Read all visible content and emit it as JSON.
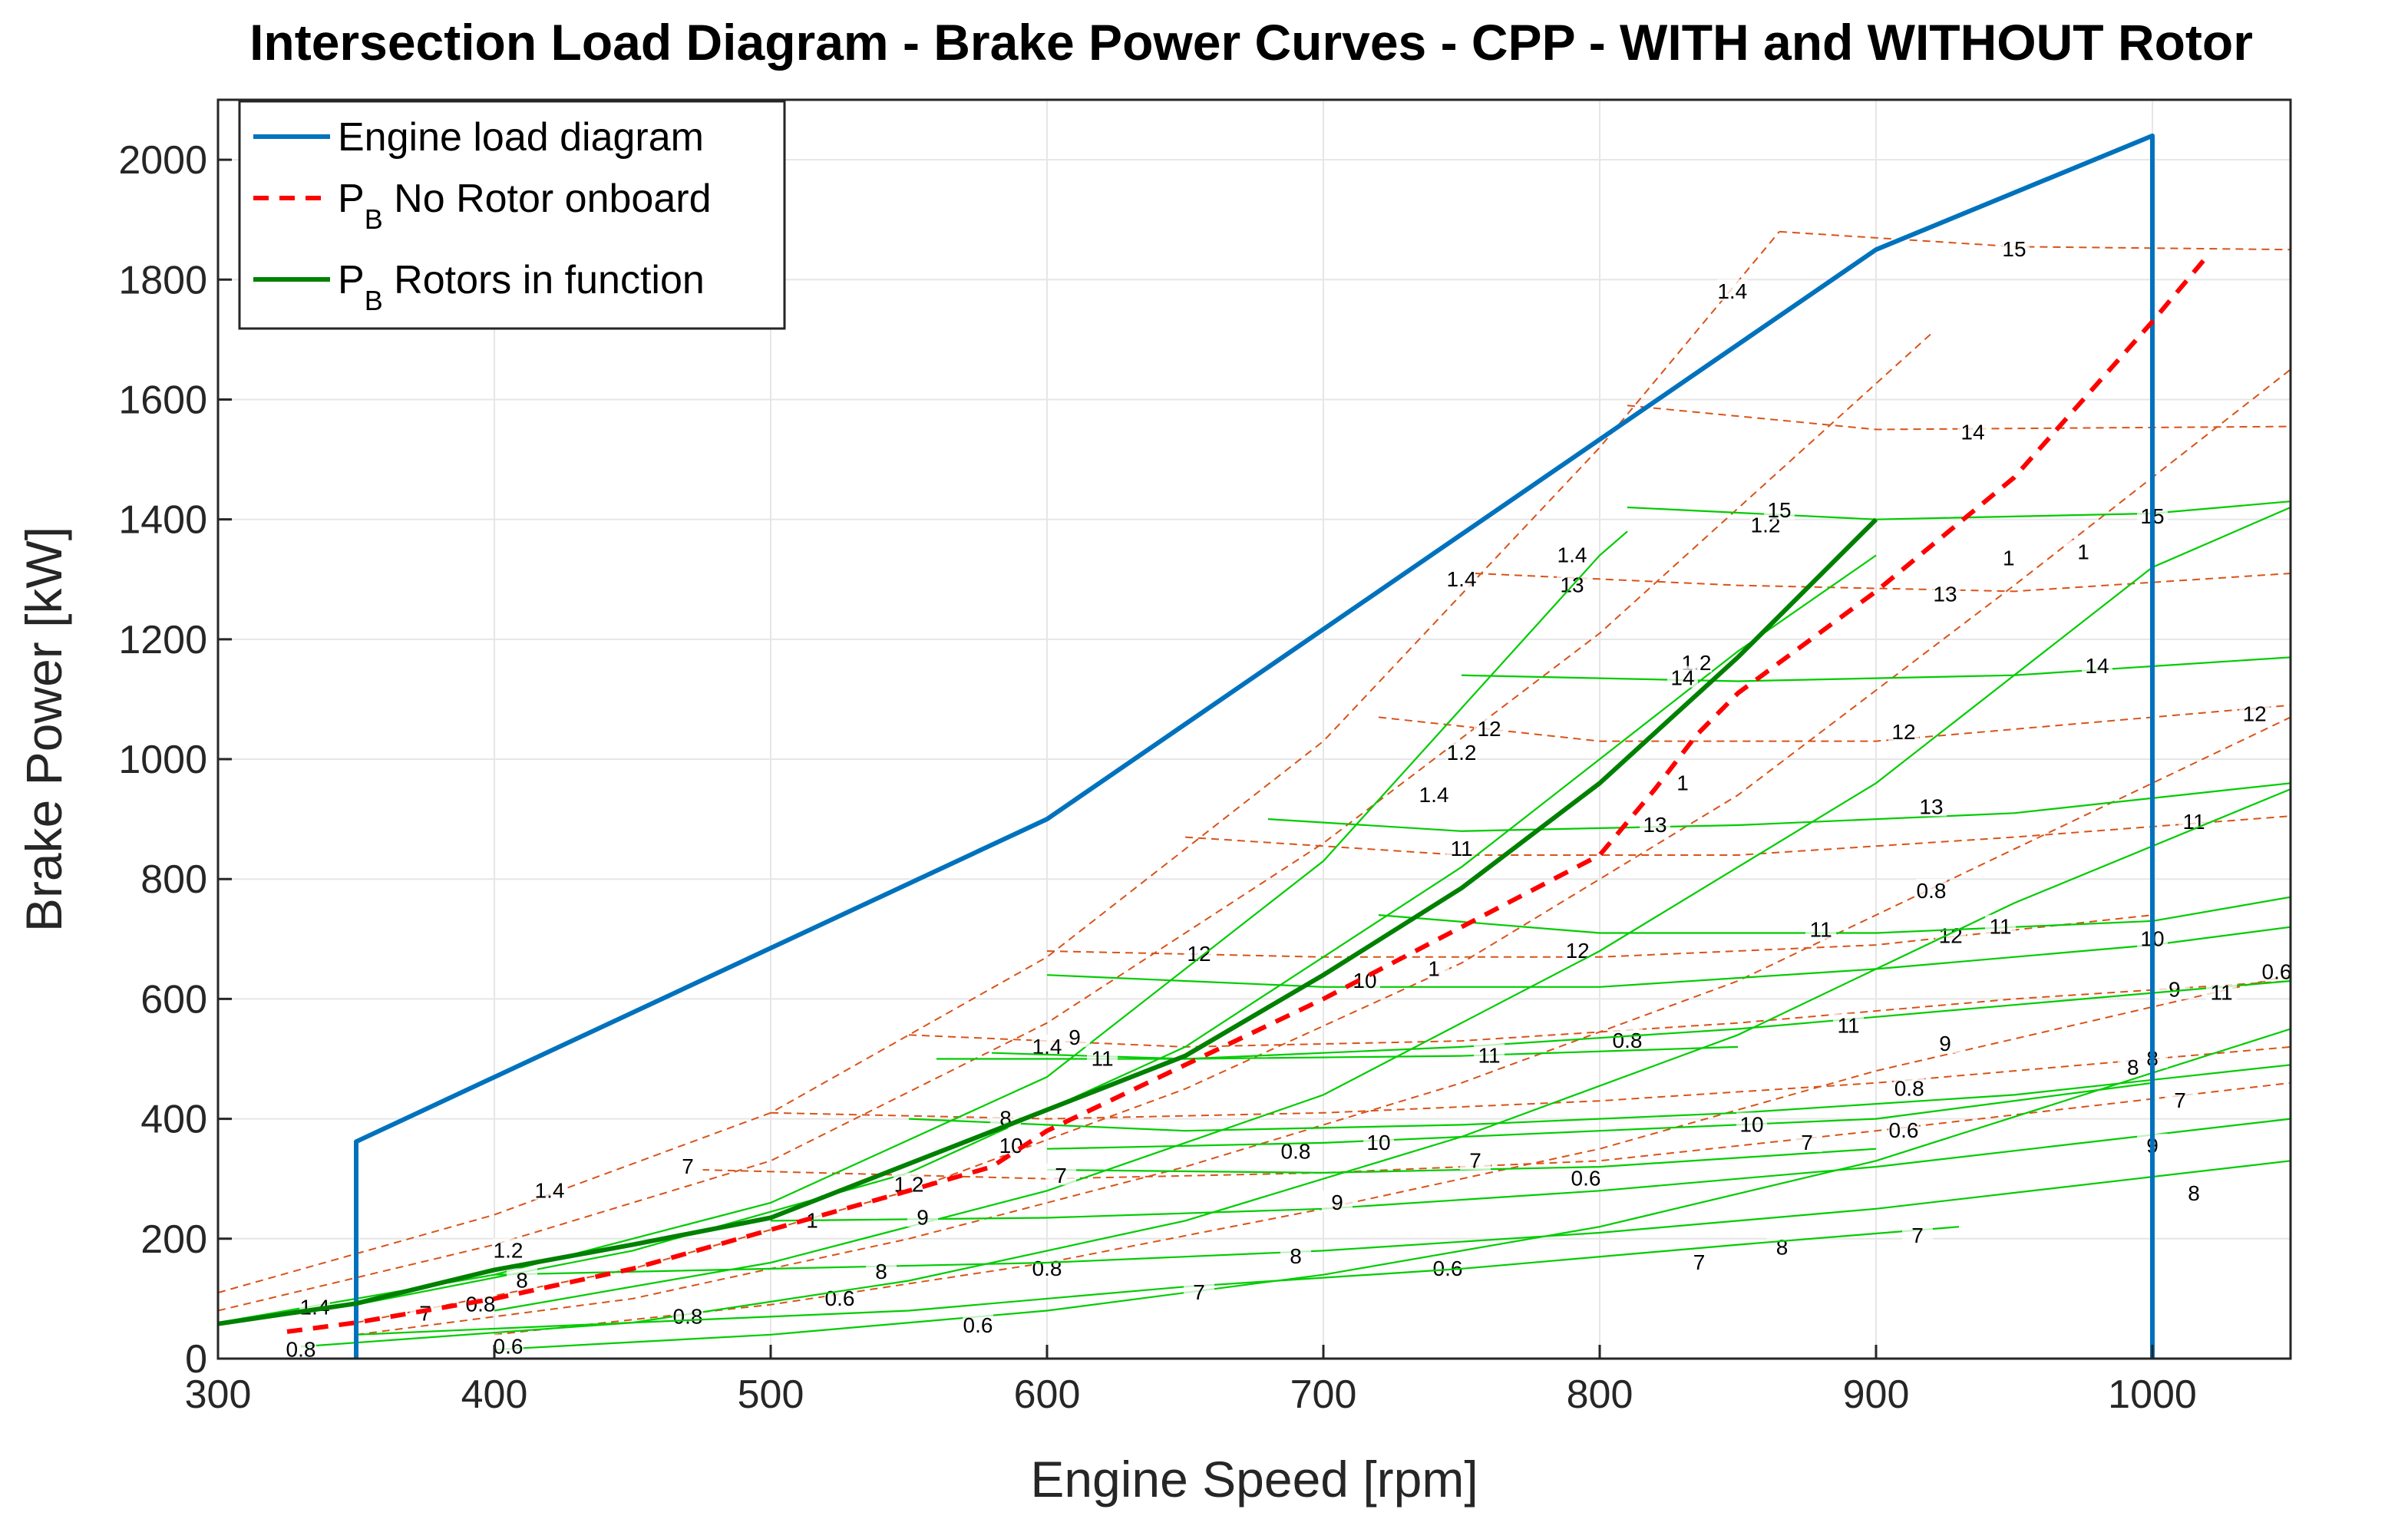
{
  "chart_data": {
    "type": "line",
    "title": "Intersection Load Diagram - Brake Power Curves - CPP - WITH and WITHOUT Rotor",
    "xlabel": "Engine Speed [rpm]",
    "ylabel": "Brake Power [kW]",
    "xlim": [
      300,
      1050
    ],
    "ylim": [
      0,
      2100
    ],
    "xticks": [
      300,
      400,
      500,
      600,
      700,
      800,
      900,
      1000
    ],
    "yticks": [
      0,
      200,
      400,
      600,
      800,
      1000,
      1200,
      1400,
      1600,
      1800,
      2000
    ],
    "grid": true,
    "legend_position": "top-left",
    "colors": {
      "load": "#0072bd",
      "no_rotor": "#ff0000",
      "rotor": "#008000",
      "contour_no_rotor": "#d95319",
      "contour_rotor": "#00cc00"
    },
    "series": [
      {
        "name": "Engine load diagram",
        "legend_main": "Engine load diagram",
        "legend_sub": "",
        "style": "solid",
        "x": [
          350,
          350,
          600,
          900,
          1000,
          1000
        ],
        "y": [
          0,
          362,
          900,
          1850,
          2040,
          0
        ]
      },
      {
        "name": "P_B No Rotor onboard",
        "legend_main": "P",
        "legend_sub": "B",
        "legend_rest": " No Rotor onboard",
        "style": "dashed",
        "x": [
          325,
          350,
          400,
          450,
          500,
          550,
          580,
          600,
          650,
          700,
          750,
          800,
          820,
          835,
          850,
          900,
          950,
          1000,
          1020
        ],
        "y": [
          45,
          60,
          100,
          150,
          215,
          280,
          320,
          380,
          490,
          600,
          720,
          840,
          950,
          1040,
          1110,
          1280,
          1470,
          1730,
          1840
        ]
      },
      {
        "name": "P_B Rotors in function",
        "legend_main": "P",
        "legend_sub": "B",
        "legend_rest": " Rotors in function",
        "style": "solid",
        "x": [
          300,
          350,
          400,
          450,
          500,
          550,
          600,
          650,
          700,
          750,
          800,
          850,
          900
        ],
        "y": [
          58,
          92,
          148,
          190,
          235,
          325,
          415,
          505,
          640,
          785,
          960,
          1170,
          1400
        ]
      }
    ],
    "contours_no_rotor": {
      "const_speed_lines": [
        {
          "label": "1.4",
          "x": [
            300,
            400,
            500,
            600,
            700,
            800,
            865
          ],
          "y": [
            110,
            240,
            410,
            670,
            1030,
            1520,
            1880
          ],
          "labels": [
            {
              "x": 420,
              "y": 280
            },
            {
              "x": 750,
              "y": 1300
            },
            {
              "x": 848,
              "y": 1780
            }
          ]
        },
        {
          "label": "1.2",
          "x": [
            300,
            400,
            500,
            600,
            700,
            800,
            920
          ],
          "y": [
            80,
            190,
            330,
            560,
            860,
            1210,
            1710
          ],
          "labels": [
            {
              "x": 405,
              "y": 180
            },
            {
              "x": 750,
              "y": 1010
            },
            {
              "x": 860,
              "y": 1390
            }
          ]
        },
        {
          "label": "1",
          "x": [
            350,
            450,
            550,
            650,
            750,
            850,
            950,
            1050
          ],
          "y": [
            60,
            150,
            280,
            450,
            660,
            940,
            1290,
            1650
          ],
          "labels": [
            {
              "x": 515,
              "y": 230
            },
            {
              "x": 740,
              "y": 650
            },
            {
              "x": 830,
              "y": 960
            },
            {
              "x": 948,
              "y": 1335
            }
          ]
        },
        {
          "label": "0.8",
          "x": [
            350,
            450,
            550,
            650,
            750,
            850,
            950,
            1050
          ],
          "y": [
            40,
            100,
            200,
            320,
            460,
            630,
            850,
            1070
          ],
          "labels": [
            {
              "x": 395,
              "y": 90
            },
            {
              "x": 690,
              "y": 345
            },
            {
              "x": 920,
              "y": 780
            }
          ]
        },
        {
          "label": "0.6",
          "x": [
            400,
            500,
            600,
            700,
            800,
            900,
            1050
          ],
          "y": [
            40,
            90,
            160,
            250,
            350,
            480,
            640
          ],
          "labels": [
            {
              "x": 525,
              "y": 100
            },
            {
              "x": 795,
              "y": 300
            },
            {
              "x": 1045,
              "y": 645
            }
          ]
        }
      ],
      "efficiency_lines": [
        {
          "label": "15",
          "x": [
            865,
            950,
            1050
          ],
          "y": [
            1880,
            1855,
            1850
          ],
          "labels": [
            {
              "x": 950,
              "y": 1850
            }
          ]
        },
        {
          "label": "14",
          "x": [
            810,
            900,
            1050
          ],
          "y": [
            1590,
            1550,
            1555
          ],
          "labels": [
            {
              "x": 935,
              "y": 1545
            }
          ]
        },
        {
          "label": "13",
          "x": [
            755,
            850,
            950,
            1050
          ],
          "y": [
            1310,
            1290,
            1280,
            1310
          ],
          "labels": [
            {
              "x": 790,
              "y": 1290
            },
            {
              "x": 925,
              "y": 1275
            }
          ]
        },
        {
          "label": "12",
          "x": [
            720,
            800,
            900,
            1050
          ],
          "y": [
            1070,
            1030,
            1030,
            1090
          ],
          "labels": [
            {
              "x": 760,
              "y": 1050
            },
            {
              "x": 910,
              "y": 1045
            },
            {
              "x": 1037,
              "y": 1075
            }
          ]
        },
        {
          "label": "11",
          "x": [
            650,
            750,
            850,
            950,
            1050
          ],
          "y": [
            870,
            840,
            840,
            870,
            905
          ],
          "labels": [
            {
              "x": 750,
              "y": 850
            },
            {
              "x": 1015,
              "y": 895
            }
          ]
        },
        {
          "label": "12",
          "x": [
            600,
            700,
            800,
            900,
            1000
          ],
          "y": [
            680,
            670,
            670,
            690,
            740
          ],
          "labels": [
            {
              "x": 655,
              "y": 675
            },
            {
              "x": 792,
              "y": 680
            },
            {
              "x": 927,
              "y": 705
            }
          ]
        },
        {
          "label": "9",
          "x": [
            550,
            650,
            750,
            850,
            950,
            1050
          ],
          "y": [
            540,
            520,
            530,
            560,
            600,
            630
          ],
          "labels": [
            {
              "x": 1008,
              "y": 615
            }
          ]
        },
        {
          "label": "8",
          "x": [
            500,
            600,
            700,
            800,
            900,
            1050
          ],
          "y": [
            410,
            400,
            410,
            430,
            460,
            520
          ],
          "labels": [
            {
              "x": 993,
              "y": 485
            }
          ]
        },
        {
          "label": "7",
          "x": [
            475,
            600,
            700,
            800,
            900,
            1050
          ],
          "y": [
            315,
            300,
            310,
            330,
            380,
            460
          ],
          "labels": [
            {
              "x": 470,
              "y": 320
            },
            {
              "x": 1010,
              "y": 430
            }
          ]
        }
      ]
    },
    "contours_rotor": {
      "const_speed_lines": [
        {
          "label": "1.4",
          "x": [
            300,
            400,
            500,
            600,
            700,
            800,
            810
          ],
          "y": [
            60,
            140,
            260,
            470,
            830,
            1340,
            1380
          ],
          "labels": [
            {
              "x": 335,
              "y": 85
            },
            {
              "x": 600,
              "y": 520
            },
            {
              "x": 740,
              "y": 940
            },
            {
              "x": 790,
              "y": 1340
            }
          ]
        },
        {
          "label": "1.2",
          "x": [
            350,
            450,
            550,
            650,
            750,
            850,
            900
          ],
          "y": [
            90,
            180,
            310,
            520,
            820,
            1180,
            1340
          ],
          "labels": [
            {
              "x": 550,
              "y": 290
            },
            {
              "x": 835,
              "y": 1160
            }
          ]
        },
        {
          "label": "1",
          "x": [
            400,
            500,
            600,
            700,
            800,
            900,
            1000,
            1050
          ],
          "y": [
            80,
            160,
            280,
            440,
            680,
            960,
            1320,
            1420
          ],
          "labels": [
            {
              "x": 975,
              "y": 1345
            }
          ]
        },
        {
          "label": "0.8",
          "x": [
            330,
            450,
            550,
            650,
            750,
            850,
            950,
            1050
          ],
          "y": [
            20,
            60,
            130,
            230,
            370,
            540,
            760,
            950
          ],
          "labels": [
            {
              "x": 330,
              "y": 15
            },
            {
              "x": 470,
              "y": 70
            },
            {
              "x": 600,
              "y": 150
            },
            {
              "x": 810,
              "y": 530
            },
            {
              "x": 912,
              "y": 450
            }
          ]
        },
        {
          "label": "0.6",
          "x": [
            400,
            500,
            600,
            700,
            800,
            900,
            1050
          ],
          "y": [
            15,
            40,
            80,
            140,
            220,
            330,
            550
          ],
          "labels": [
            {
              "x": 405,
              "y": 20
            },
            {
              "x": 575,
              "y": 55
            },
            {
              "x": 745,
              "y": 150
            },
            {
              "x": 910,
              "y": 380
            }
          ]
        }
      ],
      "efficiency_lines": [
        {
          "label": "15",
          "x": [
            810,
            900,
            1000,
            1050
          ],
          "y": [
            1420,
            1400,
            1410,
            1430
          ],
          "labels": [
            {
              "x": 865,
              "y": 1415
            },
            {
              "x": 1000,
              "y": 1405
            }
          ]
        },
        {
          "label": "14",
          "x": [
            750,
            850,
            950,
            1050
          ],
          "y": [
            1140,
            1130,
            1140,
            1170
          ],
          "labels": [
            {
              "x": 830,
              "y": 1135
            },
            {
              "x": 980,
              "y": 1155
            }
          ]
        },
        {
          "label": "13",
          "x": [
            680,
            750,
            850,
            950,
            1050
          ],
          "y": [
            900,
            880,
            890,
            910,
            960
          ],
          "labels": [
            {
              "x": 820,
              "y": 890
            },
            {
              "x": 920,
              "y": 920
            }
          ]
        },
        {
          "label": "11",
          "x": [
            720,
            800,
            900,
            1000,
            1050
          ],
          "y": [
            740,
            710,
            710,
            730,
            770
          ],
          "labels": [
            {
              "x": 880,
              "y": 715
            },
            {
              "x": 945,
              "y": 720
            }
          ]
        },
        {
          "label": "10",
          "x": [
            600,
            700,
            800,
            900,
            1000,
            1050
          ],
          "y": [
            640,
            620,
            620,
            650,
            690,
            720
          ],
          "labels": [
            {
              "x": 715,
              "y": 630
            },
            {
              "x": 1000,
              "y": 700
            }
          ]
        },
        {
          "label": "9",
          "x": [
            560,
            650,
            750,
            850,
            950,
            1050
          ],
          "y": [
            500,
            500,
            520,
            550,
            590,
            630
          ],
          "labels": [
            {
              "x": 610,
              "y": 535
            },
            {
              "x": 925,
              "y": 525
            }
          ]
        },
        {
          "label": "11",
          "x": [
            580,
            650,
            750,
            850
          ],
          "y": [
            510,
            500,
            505,
            520
          ],
          "labels": [
            {
              "x": 620,
              "y": 500
            },
            {
              "x": 760,
              "y": 505
            },
            {
              "x": 890,
              "y": 555
            },
            {
              "x": 1025,
              "y": 610
            }
          ]
        },
        {
          "label": "8",
          "x": [
            550,
            650,
            750,
            850,
            950,
            1050
          ],
          "y": [
            400,
            380,
            390,
            410,
            440,
            490
          ],
          "labels": [
            {
              "x": 585,
              "y": 400
            },
            {
              "x": 1000,
              "y": 500
            }
          ]
        },
        {
          "label": "10",
          "x": [
            600,
            700,
            800,
            900,
            1000
          ],
          "y": [
            350,
            360,
            380,
            400,
            460
          ],
          "labels": [
            {
              "x": 587,
              "y": 355
            },
            {
              "x": 720,
              "y": 360
            },
            {
              "x": 855,
              "y": 390
            }
          ]
        },
        {
          "label": "7",
          "x": [
            600,
            700,
            800,
            900
          ],
          "y": [
            315,
            310,
            320,
            350
          ],
          "labels": [
            {
              "x": 605,
              "y": 305
            },
            {
              "x": 755,
              "y": 330
            },
            {
              "x": 875,
              "y": 360
            }
          ]
        },
        {
          "label": "9",
          "x": [
            500,
            600,
            700,
            800,
            900,
            1050
          ],
          "y": [
            230,
            235,
            250,
            280,
            320,
            400
          ],
          "labels": [
            {
              "x": 555,
              "y": 235
            },
            {
              "x": 705,
              "y": 260
            },
            {
              "x": 1000,
              "y": 355
            }
          ]
        },
        {
          "label": "8",
          "x": [
            400,
            500,
            600,
            700,
            800,
            900,
            1050
          ],
          "y": [
            140,
            150,
            160,
            180,
            210,
            250,
            330
          ],
          "labels": [
            {
              "x": 410,
              "y": 130
            },
            {
              "x": 540,
              "y": 145
            },
            {
              "x": 690,
              "y": 170
            },
            {
              "x": 866,
              "y": 185
            },
            {
              "x": 1015,
              "y": 275
            }
          ]
        },
        {
          "label": "7",
          "x": [
            350,
            450,
            550,
            650,
            750,
            850,
            930
          ],
          "y": [
            40,
            60,
            80,
            120,
            150,
            190,
            220
          ],
          "labels": [
            {
              "x": 375,
              "y": 75
            },
            {
              "x": 655,
              "y": 110
            },
            {
              "x": 836,
              "y": 160
            },
            {
              "x": 915,
              "y": 205
            }
          ]
        }
      ]
    }
  }
}
